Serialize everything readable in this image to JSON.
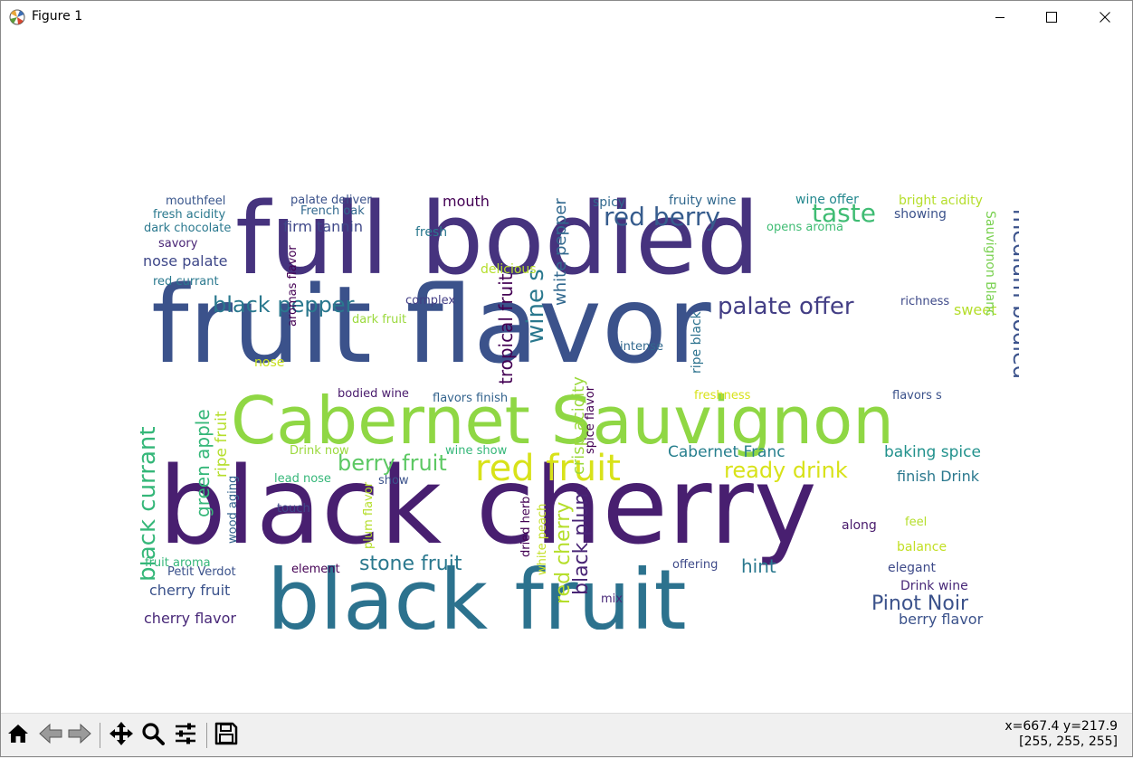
{
  "window": {
    "title": "Figure 1",
    "icon": "matplotlib-icon",
    "controls": [
      "minimize-icon",
      "maximize-icon",
      "close-icon"
    ]
  },
  "toolbar": {
    "buttons": [
      {
        "name": "home",
        "icon": "home-icon"
      },
      {
        "name": "back",
        "icon": "back-arrow-icon"
      },
      {
        "name": "forward",
        "icon": "forward-arrow-icon"
      },
      {
        "name": "pan",
        "icon": "move-icon"
      },
      {
        "name": "zoom",
        "icon": "zoom-icon"
      },
      {
        "name": "configure",
        "icon": "sliders-icon"
      },
      {
        "name": "save",
        "icon": "save-icon"
      }
    ],
    "coords": "x=667.4 y=217.9",
    "pixel_value": "[255, 255, 255]"
  },
  "wordcloud": {
    "background": "#ffffff",
    "words": [
      "fruit flavor",
      "full bodied",
      "black cherry",
      "black fruit",
      "Cabernet Sauvignon",
      "red fruit",
      "red berry",
      "taste",
      "palate offer",
      "medium bodied",
      "black pepper",
      "berry fruit",
      "ready drink",
      "stone fruit",
      "Pinot Noir",
      "black currant",
      "green apple",
      "tropical fruit",
      "wine s",
      "white pepper",
      "red cherry",
      "black plum",
      "crisp acidity",
      "Cabernet Franc",
      "baking spice",
      "finish Drink",
      "hint",
      "cherry fruit",
      "cherry flavor",
      "berry flavor",
      "sweet",
      "Sauvignon Blanc",
      "ripe fruit",
      "ripe black",
      "fruity wine",
      "wine offer",
      "bright acidity",
      "showing",
      "opens aroma",
      "mouth",
      "spicy",
      "firm tannin",
      "fresh",
      "mouthfeel",
      "palate deliver",
      "French oak",
      "fresh acidity",
      "dark chocolate",
      "savory",
      "nose palate",
      "red currant",
      "complex",
      "dark fruit",
      "delicious",
      "richness",
      "intense",
      "nose",
      "aromas flavor",
      "bodied wine",
      "flavors finish",
      "flavors s",
      "wine show",
      "Drink now",
      "lead nose",
      "show",
      "touch",
      "wood aging",
      "dried herb",
      "white peach",
      "plum flavor",
      "spice flavor",
      "fruit aroma",
      "Petit Verdot",
      "element",
      "offering",
      "elegant",
      "Drink wine",
      "along",
      "feel",
      "balance",
      "freshness",
      "mix"
    ]
  }
}
